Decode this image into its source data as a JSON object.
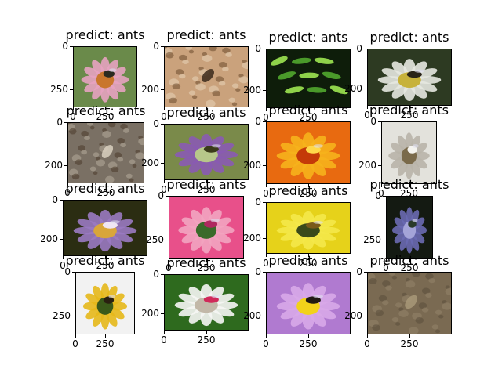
{
  "chart_data": {
    "type": "image-grid",
    "rows": 4,
    "cols": 4,
    "panels": [
      {
        "title": "predict: ants",
        "yticks": [
          "0",
          "250"
        ],
        "xticks": [
          "0",
          "250"
        ],
        "scene": "pink-coneflower-bee",
        "colors": [
          "#6a8a4a",
          "#e7a2c0",
          "#c9762d",
          "#2b2a20"
        ]
      },
      {
        "title": "predict: ants",
        "yticks": [
          "0",
          "200"
        ],
        "xticks": [
          "0",
          "250"
        ],
        "scene": "ants-on-wood",
        "colors": [
          "#caa27c",
          "#e8d3b8",
          "#6b4a2c",
          "#3b2a1c"
        ]
      },
      {
        "title": "predict: ants",
        "yticks": [
          "0",
          "200"
        ],
        "xticks": [
          "0",
          "250"
        ],
        "scene": "green-leaves",
        "colors": [
          "#0e1d0a",
          "#4a9a2a",
          "#8fd24a",
          "#1f3a12"
        ]
      },
      {
        "title": "predict: ants",
        "yticks": [
          "0",
          "200"
        ],
        "xticks": [
          "0",
          "250"
        ],
        "scene": "white-flower-bumblebee",
        "colors": [
          "#2d3a22",
          "#e6e8e0",
          "#c7b23a",
          "#2a2418"
        ]
      },
      {
        "title": "predict: ants",
        "yticks": [
          "0",
          "200"
        ],
        "xticks": [
          "0",
          "250"
        ],
        "scene": "ant-on-rock",
        "colors": [
          "#7a7064",
          "#b5ab9a",
          "#4a3a2a",
          "#d9d0c0"
        ]
      },
      {
        "title": "predict: ants",
        "yticks": [
          "0",
          "200"
        ],
        "xticks": [
          "0",
          "250"
        ],
        "scene": "lavender-bee",
        "colors": [
          "#7a8a4a",
          "#8a5ab2",
          "#b7c78a",
          "#3a3a1a"
        ]
      },
      {
        "title": "predict: ants",
        "yticks": [
          "0",
          "200"
        ],
        "xticks": [
          "0",
          "250"
        ],
        "scene": "orange-dahlia",
        "colors": [
          "#e86a10",
          "#f6b21c",
          "#c43a08",
          "#ffd84a"
        ]
      },
      {
        "title": "predict: ants",
        "yticks": [
          "0",
          "200"
        ],
        "xticks": [
          "0",
          "250"
        ],
        "scene": "white-petals-bee",
        "colors": [
          "#e3e2dc",
          "#b8b4a8",
          "#7a6a4a",
          "#f4f3ee"
        ]
      },
      {
        "title": "predict: ants",
        "yticks": [
          "0",
          "200"
        ],
        "xticks": [
          "0",
          "250"
        ],
        "scene": "purple-flower-bumblebee",
        "colors": [
          "#2b2d12",
          "#9a7ac2",
          "#d9a63a",
          "#f0e6f4"
        ]
      },
      {
        "title": "predict: ants",
        "yticks": [
          "0",
          "250"
        ],
        "xticks": [
          "0",
          "250"
        ],
        "scene": "pink-camellia-bee",
        "colors": [
          "#e8508a",
          "#f2a4c0",
          "#3a6a2a",
          "#b02860"
        ]
      },
      {
        "title": "predict: ants",
        "yticks": [
          "0",
          "200"
        ],
        "xticks": [
          "0",
          "250"
        ],
        "scene": "yellow-flower-bee",
        "colors": [
          "#e6d21a",
          "#f4e84a",
          "#3a4a1a",
          "#7a5a1a"
        ]
      },
      {
        "title": "predict: ants",
        "yticks": [
          "0",
          "250"
        ],
        "xticks": [
          "0",
          "250"
        ],
        "scene": "purple-spike-flower",
        "colors": [
          "#141a12",
          "#6a6ab2",
          "#a4a4d8",
          "#2a3a2a"
        ]
      },
      {
        "title": "predict: ants",
        "yticks": [
          "0",
          "250"
        ],
        "xticks": [
          "0",
          "250"
        ],
        "scene": "daisy-bee",
        "colors": [
          "#f2f2f2",
          "#e6b81a",
          "#3a5a1a",
          "#2a2010"
        ]
      },
      {
        "title": "predict: ants",
        "yticks": [
          "0",
          "200"
        ],
        "xticks": [
          "0",
          "250"
        ],
        "scene": "white-daisy",
        "colors": [
          "#2e6a1e",
          "#f6f6f4",
          "#c2b8a8",
          "#d02a5a"
        ]
      },
      {
        "title": "predict: ants",
        "yticks": [
          "0",
          "200"
        ],
        "xticks": [
          "0",
          "250"
        ],
        "scene": "purple-petal-bumblebee",
        "colors": [
          "#b07ad0",
          "#d8a8e8",
          "#f2d21a",
          "#201a12"
        ]
      },
      {
        "title": "predict: ants",
        "yticks": [
          "0",
          "200"
        ],
        "xticks": [
          "0",
          "250"
        ],
        "scene": "ant-on-sand",
        "colors": [
          "#7a6a52",
          "#94846a",
          "#5a4c3a",
          "#a89878"
        ]
      }
    ]
  }
}
